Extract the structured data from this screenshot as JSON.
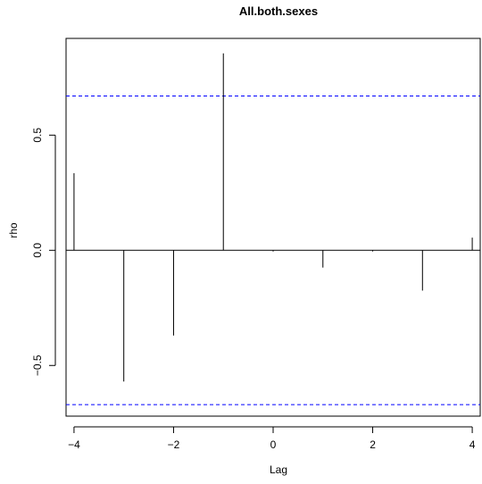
{
  "chart_data": {
    "type": "bar",
    "title": "All.both.sexes",
    "xlabel": "Lag",
    "ylabel": "rho",
    "xlim": [
      -4.16,
      4.16
    ],
    "ylim": [
      -0.72,
      0.92
    ],
    "x": [
      -4,
      -3,
      -2,
      -1,
      0,
      1,
      2,
      3,
      4
    ],
    "values": [
      0.335,
      -0.57,
      -0.37,
      0.855,
      -0.005,
      -0.075,
      -0.005,
      -0.175,
      0.055
    ],
    "x_ticks": [
      -4,
      -2,
      0,
      2,
      4
    ],
    "x_tick_labels": [
      "−4",
      "−2",
      "0",
      "2",
      "4"
    ],
    "y_ticks": [
      -0.5,
      0.0,
      0.5
    ],
    "y_tick_labels": [
      "−0.5",
      "0.0",
      "0.5"
    ],
    "confidence_bounds": [
      0.67,
      -0.67
    ],
    "confidence_color": "#0000ff",
    "bar_color": "#000000",
    "grid": false
  }
}
